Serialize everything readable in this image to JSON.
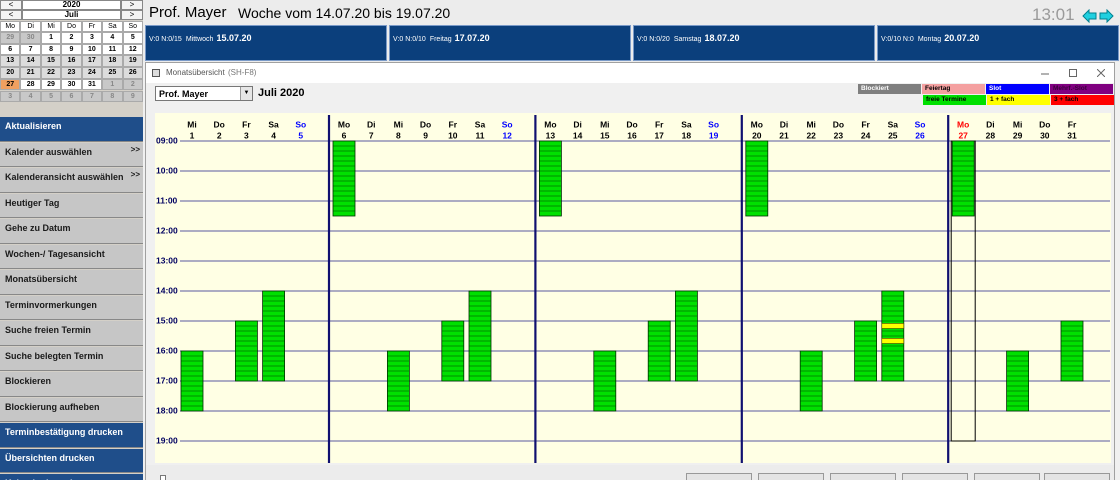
{
  "header": {
    "name": "Prof. Mayer",
    "week": "Woche vom 14.07.20 bis 19.07.20",
    "clock": "13:01"
  },
  "day_boxes": [
    {
      "counts": "V:0 N:0/15",
      "day": "Mittwoch",
      "date": "15.07.20"
    },
    {
      "counts": "V:0 N:0/10",
      "day": "Freitag",
      "date": "17.07.20"
    },
    {
      "counts": "V:0 N:0/20",
      "day": "Samstag",
      "date": "18.07.20"
    },
    {
      "counts": "V:0/10 N:0",
      "day": "Montag",
      "date": "20.07.20"
    }
  ],
  "mini_calendar": {
    "year": "2020",
    "month": "Juli",
    "prev": "<",
    "next": ">",
    "weekdays": [
      "Mo",
      "Di",
      "Mi",
      "Do",
      "Fr",
      "Sa",
      "So"
    ],
    "weeks": [
      [
        {
          "d": "29",
          "muted": true
        },
        {
          "d": "30",
          "muted": true
        },
        {
          "d": "1"
        },
        {
          "d": "2"
        },
        {
          "d": "3"
        },
        {
          "d": "4"
        },
        {
          "d": "5"
        }
      ],
      [
        {
          "d": "6"
        },
        {
          "d": "7"
        },
        {
          "d": "8"
        },
        {
          "d": "9"
        },
        {
          "d": "10"
        },
        {
          "d": "11"
        },
        {
          "d": "12"
        }
      ],
      [
        {
          "d": "13",
          "week": true
        },
        {
          "d": "14",
          "week": true
        },
        {
          "d": "15",
          "week": true
        },
        {
          "d": "16",
          "week": true
        },
        {
          "d": "17",
          "week": true
        },
        {
          "d": "18",
          "week": true
        },
        {
          "d": "19",
          "week": true
        }
      ],
      [
        {
          "d": "20",
          "week": true
        },
        {
          "d": "21",
          "week": true
        },
        {
          "d": "22",
          "week": true
        },
        {
          "d": "23",
          "week": true
        },
        {
          "d": "24",
          "week": true
        },
        {
          "d": "25",
          "week": true
        },
        {
          "d": "26",
          "week": true
        }
      ],
      [
        {
          "d": "27",
          "today": true
        },
        {
          "d": "28"
        },
        {
          "d": "29"
        },
        {
          "d": "30"
        },
        {
          "d": "31"
        },
        {
          "d": "1",
          "muted": true
        },
        {
          "d": "2",
          "muted": true
        }
      ],
      [
        {
          "d": "3",
          "muted": true
        },
        {
          "d": "4",
          "muted": true
        },
        {
          "d": "5",
          "muted": true
        },
        {
          "d": "6",
          "muted": true
        },
        {
          "d": "7",
          "muted": true
        },
        {
          "d": "8",
          "muted": true
        },
        {
          "d": "9",
          "muted": true
        }
      ]
    ]
  },
  "menu": [
    {
      "label": "Aktualisieren",
      "blue": true
    },
    {
      "label": "Kalender auswählen",
      "arrow": ">>"
    },
    {
      "label": "Kalenderansicht auswählen",
      "arrow": ">>"
    },
    {
      "label": "Heutiger Tag"
    },
    {
      "label": "Gehe zu Datum"
    },
    {
      "label": "Wochen-/ Tagesansicht"
    },
    {
      "label": "Monatsübersicht"
    },
    {
      "label": "Terminvormerkungen"
    },
    {
      "label": "Suche freien Termin"
    },
    {
      "label": "Suche belegten Termin"
    },
    {
      "label": "Blockieren"
    },
    {
      "label": "Blockierung aufheben"
    },
    {
      "label": "Terminbestätigung drucken",
      "blue": true
    },
    {
      "label": "Übersichten drucken",
      "blue": true
    },
    {
      "label": "Kalender beenden",
      "blue": true
    }
  ],
  "window": {
    "title": "Monatsübersicht",
    "shortcut": "(SH-F8)",
    "doctor": "Prof. Mayer",
    "month": "Juli 2020",
    "legend": [
      [
        {
          "label": "Blockiert",
          "color": "#7f7f7f",
          "text": "#ffffff"
        },
        {
          "label": "Feiertag",
          "color": "#f4a0a0",
          "text": "#000000"
        },
        {
          "label": "Slot",
          "color": "#0000ff",
          "text": "#ffffff"
        },
        {
          "label": "Mehrf.-Slot",
          "color": "#800080",
          "text": "#3a003a"
        }
      ],
      [
        {
          "label": "freie Termine",
          "color": "#00e000",
          "text": "#000000"
        },
        {
          "label": "1 + fach",
          "color": "#ffff00",
          "text": "#000000"
        },
        {
          "label": "3 + fach",
          "color": "#ff0000",
          "text": "#000000"
        }
      ]
    ],
    "free_color": "#00e000",
    "hours": [
      {
        "value": 9,
        "label": "09:00"
      },
      {
        "value": 10,
        "label": "10:00"
      },
      {
        "value": 11,
        "label": "11:00"
      },
      {
        "value": 12,
        "label": "12:00"
      },
      {
        "value": 13,
        "label": "13:00"
      },
      {
        "value": 14,
        "label": "14:00"
      },
      {
        "value": 15,
        "label": "15:00"
      },
      {
        "value": 16,
        "label": "16:00"
      },
      {
        "value": 17,
        "label": "17:00"
      },
      {
        "value": 18,
        "label": "18:00"
      },
      {
        "value": 19,
        "label": "19:00"
      }
    ],
    "days": [
      {
        "wd": "Mi",
        "d": "1",
        "blocks": [
          {
            "start": 16,
            "end": 18
          }
        ]
      },
      {
        "wd": "Do",
        "d": "2"
      },
      {
        "wd": "Fr",
        "d": "3",
        "blocks": [
          {
            "start": 15,
            "end": 17
          }
        ]
      },
      {
        "wd": "Sa",
        "d": "4",
        "blocks": [
          {
            "start": 14,
            "end": 17
          }
        ]
      },
      {
        "wd": "So",
        "d": "5",
        "color": "#0000ff"
      },
      {
        "wd": "Mo",
        "d": "6",
        "week_start": true,
        "blocks": [
          {
            "start": 9,
            "end": 11.5
          }
        ]
      },
      {
        "wd": "Di",
        "d": "7"
      },
      {
        "wd": "Mi",
        "d": "8",
        "blocks": [
          {
            "start": 16,
            "end": 18
          }
        ]
      },
      {
        "wd": "Do",
        "d": "9"
      },
      {
        "wd": "Fr",
        "d": "10",
        "blocks": [
          {
            "start": 15,
            "end": 17
          }
        ]
      },
      {
        "wd": "Sa",
        "d": "11",
        "blocks": [
          {
            "start": 14,
            "end": 17
          }
        ]
      },
      {
        "wd": "So",
        "d": "12",
        "color": "#0000ff"
      },
      {
        "wd": "Mo",
        "d": "13",
        "week_start": true,
        "blocks": [
          {
            "start": 9,
            "end": 11.5
          }
        ]
      },
      {
        "wd": "Di",
        "d": "14"
      },
      {
        "wd": "Mi",
        "d": "15",
        "blocks": [
          {
            "start": 16,
            "end": 18
          }
        ]
      },
      {
        "wd": "Do",
        "d": "16"
      },
      {
        "wd": "Fr",
        "d": "17",
        "blocks": [
          {
            "start": 15,
            "end": 17
          }
        ]
      },
      {
        "wd": "Sa",
        "d": "18",
        "blocks": [
          {
            "start": 14,
            "end": 17
          }
        ]
      },
      {
        "wd": "So",
        "d": "19",
        "color": "#0000ff"
      },
      {
        "wd": "Mo",
        "d": "20",
        "week_start": true,
        "blocks": [
          {
            "start": 9,
            "end": 11.5
          }
        ]
      },
      {
        "wd": "Di",
        "d": "21"
      },
      {
        "wd": "Mi",
        "d": "22",
        "blocks": [
          {
            "start": 16,
            "end": 18
          }
        ]
      },
      {
        "wd": "Do",
        "d": "23"
      },
      {
        "wd": "Fr",
        "d": "24",
        "blocks": [
          {
            "start": 15,
            "end": 17
          }
        ]
      },
      {
        "wd": "Sa",
        "d": "25",
        "blocks": [
          {
            "start": 14,
            "end": 17
          }
        ],
        "booked": [
          {
            "start": 15.08,
            "end": 15.25,
            "color": "#ffff00"
          },
          {
            "start": 15.58,
            "end": 15.75,
            "color": "#ffff00"
          }
        ]
      },
      {
        "wd": "So",
        "d": "26",
        "color": "#0000ff"
      },
      {
        "wd": "Mo",
        "d": "27",
        "week_start": true,
        "color": "#ff0000",
        "selected": true,
        "blocks": [
          {
            "start": 9,
            "end": 11.5
          }
        ]
      },
      {
        "wd": "Di",
        "d": "28"
      },
      {
        "wd": "Mi",
        "d": "29",
        "blocks": [
          {
            "start": 16,
            "end": 18
          }
        ]
      },
      {
        "wd": "Do",
        "d": "30"
      },
      {
        "wd": "Fr",
        "d": "31",
        "blocks": [
          {
            "start": 15,
            "end": 17
          }
        ]
      }
    ]
  }
}
